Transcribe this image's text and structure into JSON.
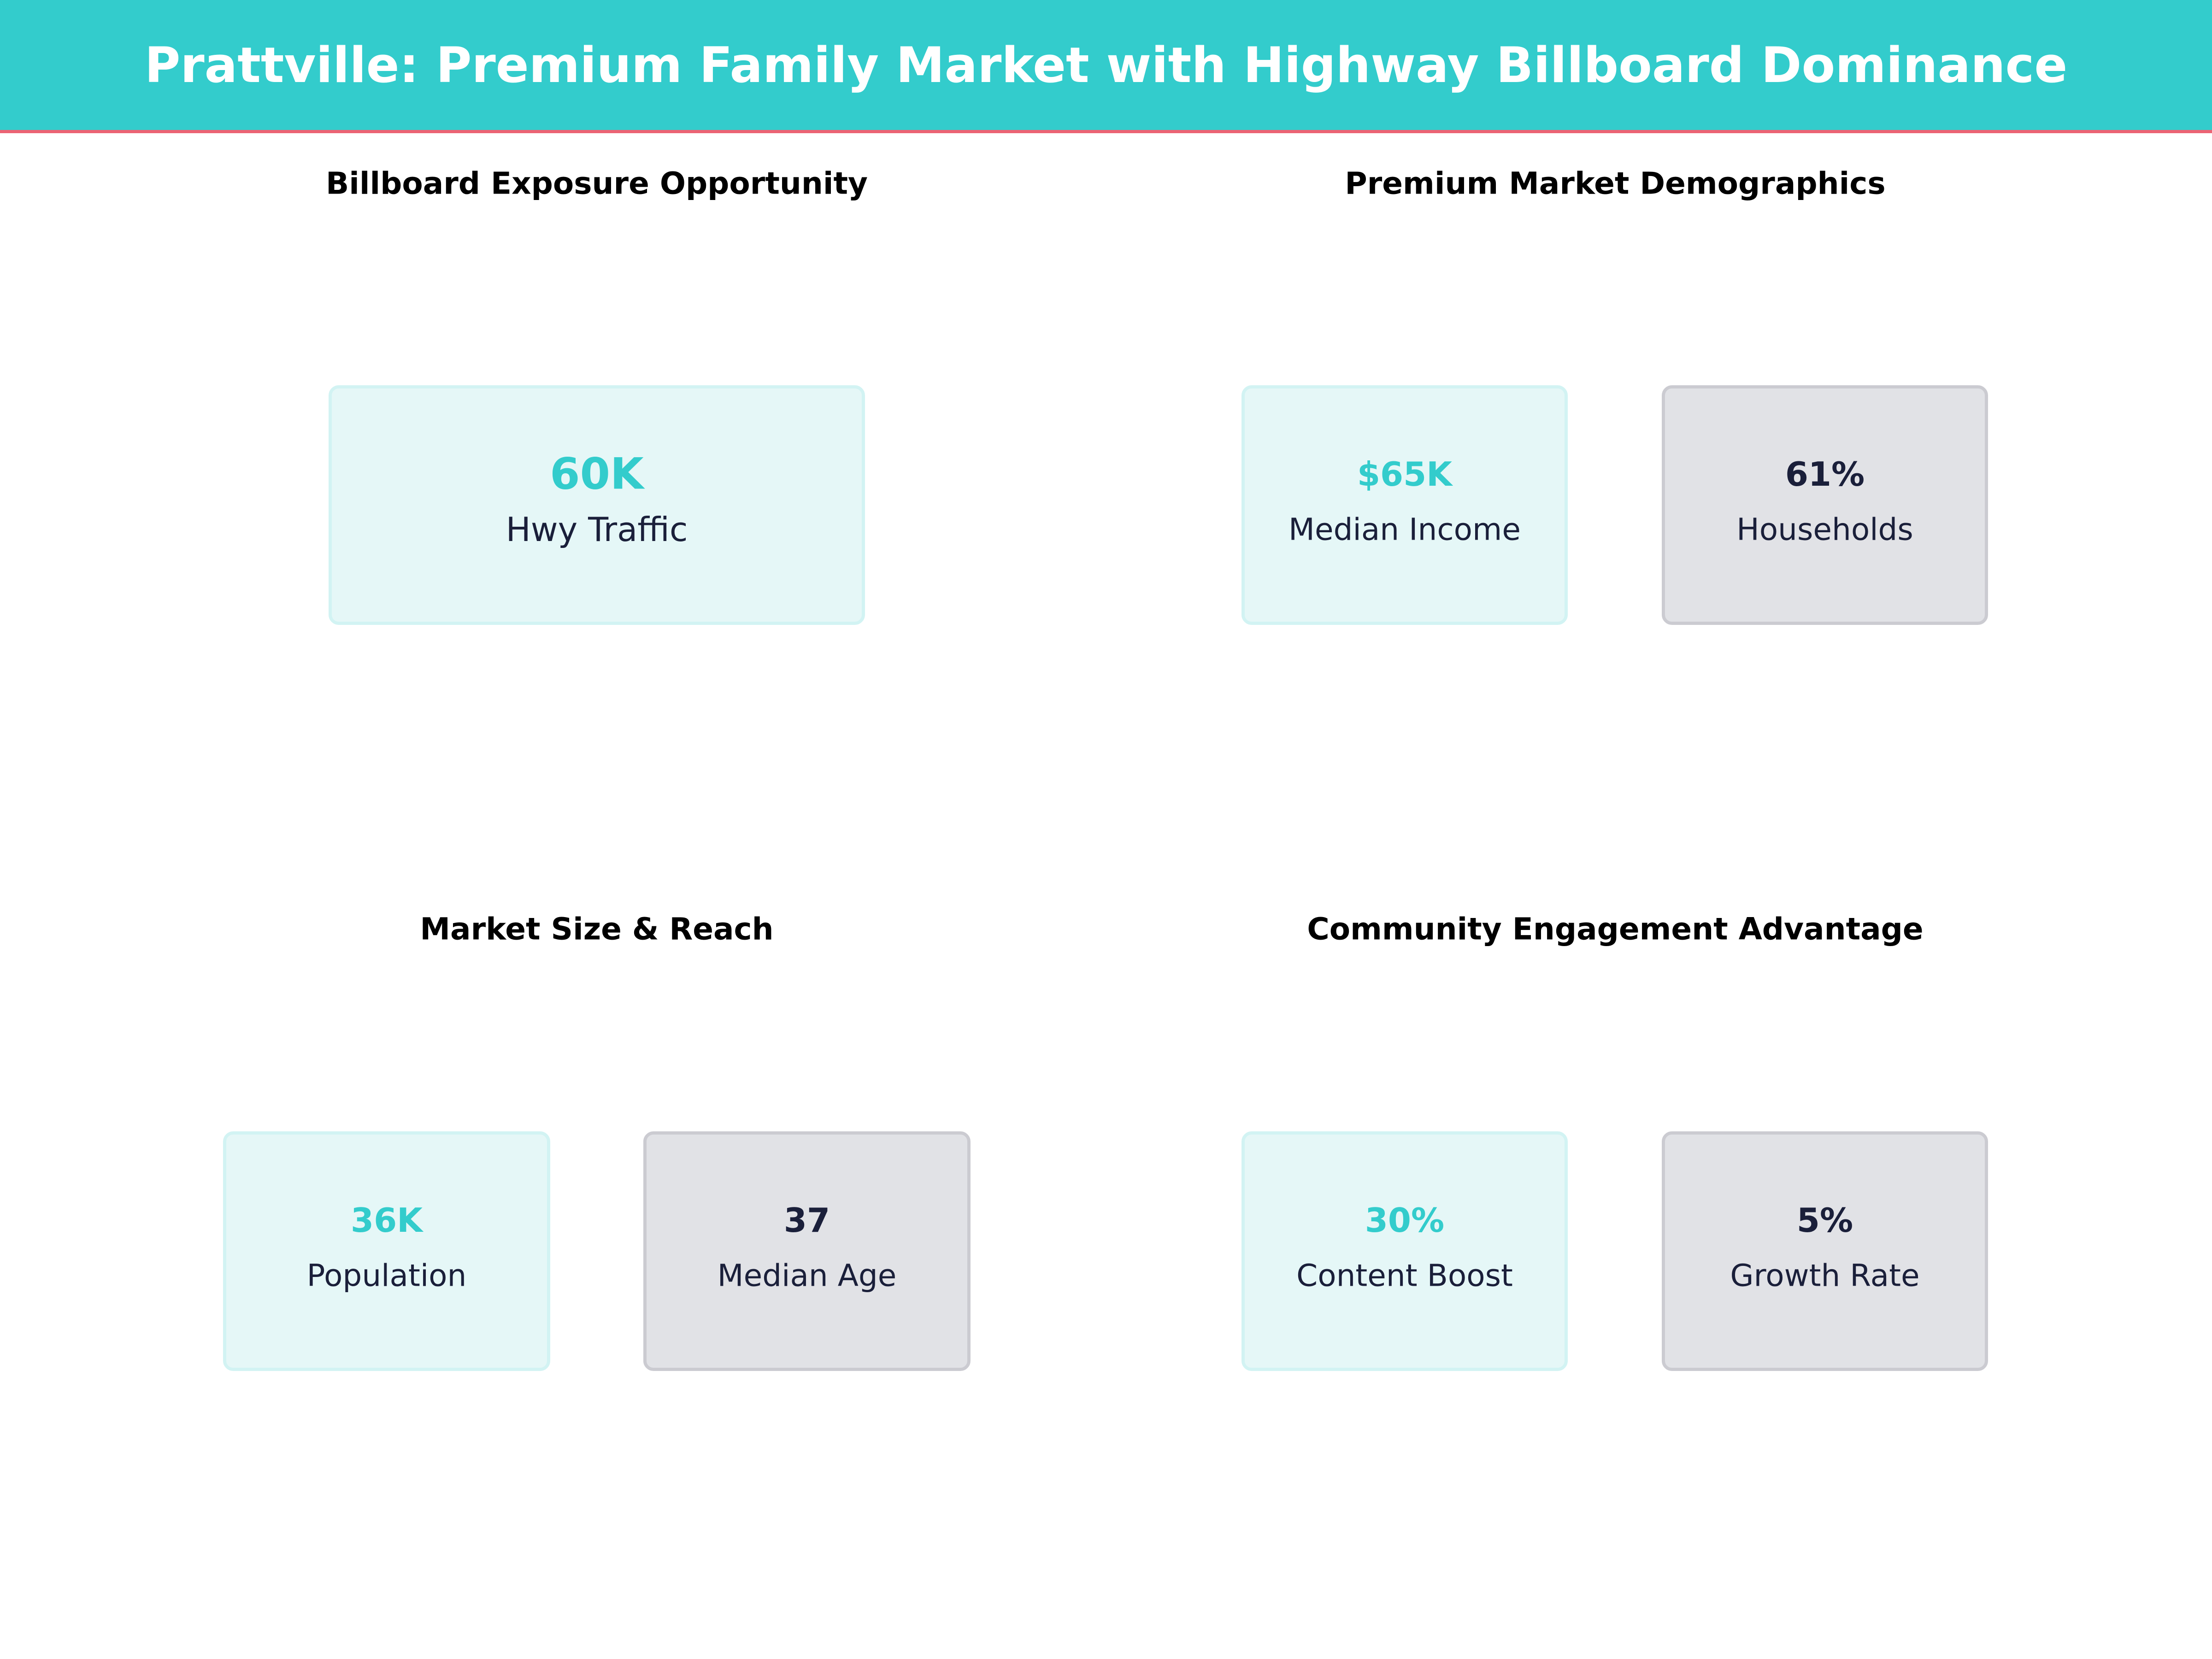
{
  "header": {
    "title": "Prattville: Premium Family Market with Highway Billboard Dominance"
  },
  "colors": {
    "accent": "#33CCCC",
    "header_border": "#EB6374",
    "dark": "#1A1F3A",
    "teal_card": "#E5F7F7",
    "gray_card": "#E1E2E6"
  },
  "panels": [
    {
      "title": "Billboard Exposure Opportunity",
      "cards": [
        {
          "value": "60K",
          "label": "Hwy Traffic"
        }
      ]
    },
    {
      "title": "Premium Market Demographics",
      "cards": [
        {
          "value": "$65K",
          "label": "Median Income"
        },
        {
          "value": "61%",
          "label": "Households"
        }
      ]
    },
    {
      "title": "Market Size & Reach",
      "cards": [
        {
          "value": "36K",
          "label": "Population"
        },
        {
          "value": "37",
          "label": "Median Age"
        }
      ]
    },
    {
      "title": "Community Engagement Advantage",
      "cards": [
        {
          "value": "30%",
          "label": "Content Boost"
        },
        {
          "value": "5%",
          "label": "Growth Rate"
        }
      ]
    }
  ]
}
